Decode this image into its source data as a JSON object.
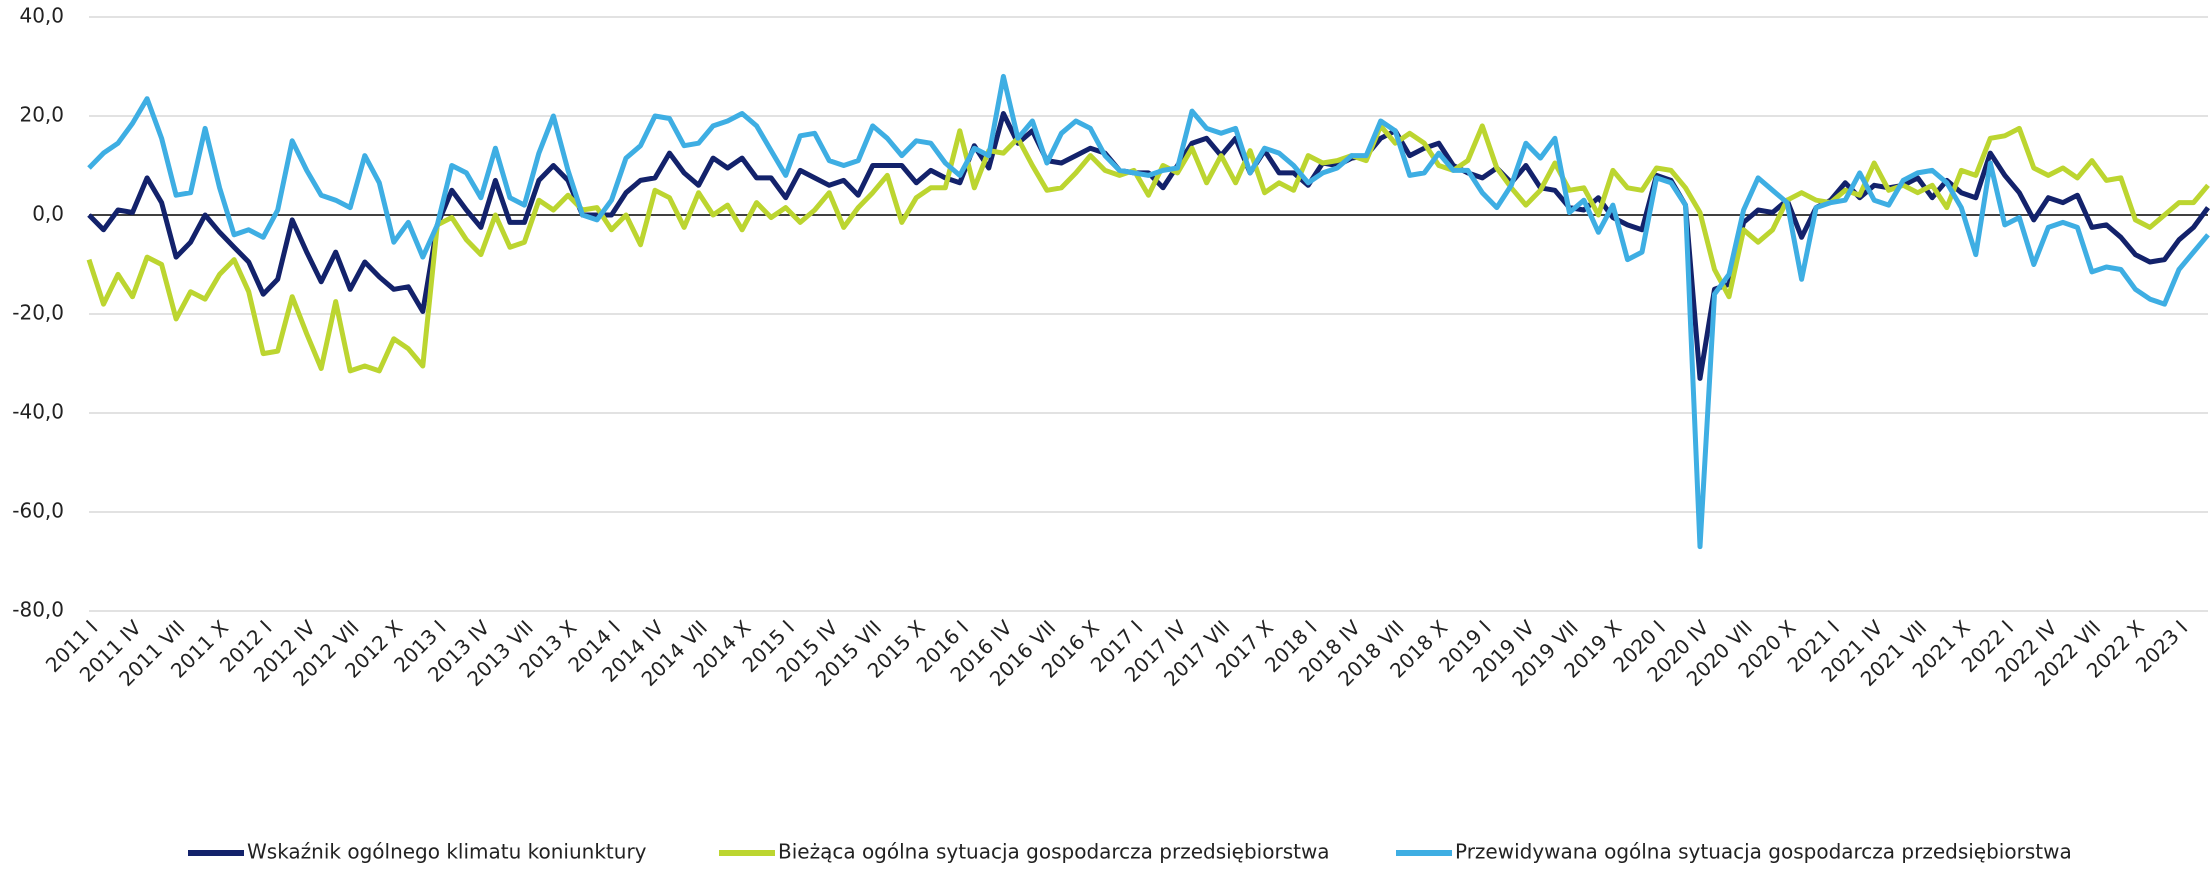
{
  "chart_data": {
    "type": "line",
    "categories": [
      "2011 I",
      null,
      null,
      "2011 IV",
      null,
      null,
      "2011 VII",
      null,
      null,
      "2011 X",
      null,
      null,
      "2012 I",
      null,
      null,
      "2012 IV",
      null,
      null,
      "2012 VII",
      null,
      null,
      "2012 X",
      null,
      null,
      "2013 I",
      null,
      null,
      "2013 IV",
      null,
      null,
      "2013 VII",
      null,
      null,
      "2013 X",
      null,
      null,
      "2014 I",
      null,
      null,
      "2014 IV",
      null,
      null,
      "2014 VII",
      null,
      null,
      "2014 X",
      null,
      null,
      "2015 I",
      null,
      null,
      "2015 IV",
      null,
      null,
      "2015 VII",
      null,
      null,
      "2015 X",
      null,
      null,
      "2016 I",
      null,
      null,
      "2016 IV",
      null,
      null,
      "2016 VII",
      null,
      null,
      "2016 X",
      null,
      null,
      "2017 I",
      null,
      null,
      "2017 IV",
      null,
      null,
      "2017 VII",
      null,
      null,
      "2017 X",
      null,
      null,
      "2018 I",
      null,
      null,
      "2018 IV",
      null,
      null,
      "2018 VII",
      null,
      null,
      "2018 X",
      null,
      null,
      "2019 I",
      null,
      null,
      "2019 IV",
      null,
      null,
      "2019 VII",
      null,
      null,
      "2019 X",
      null,
      null,
      "2020 I",
      null,
      null,
      "2020 IV",
      null,
      null,
      "2020 VII",
      null,
      null,
      "2020 X",
      null,
      null,
      "2021 I",
      null,
      null,
      "2021 IV",
      null,
      null,
      "2021 VII",
      null,
      null,
      "2021 X",
      null,
      null,
      "2022 I",
      null,
      null,
      "2022 IV",
      null,
      null,
      "2022 VII",
      null,
      null,
      "2022 X",
      null,
      null,
      "2023 I",
      null,
      null
    ],
    "series": [
      {
        "name": "Wskaźnik ogólnego klimatu koniunktury",
        "color": "#13226b",
        "values": [
          0,
          -3,
          1,
          0.5,
          7.5,
          2.5,
          -8.5,
          -5.5,
          0,
          -3.5,
          -6.5,
          -9.5,
          -16,
          -13,
          -1,
          -7.5,
          -13.5,
          -7.5,
          -15,
          -9.5,
          -12.5,
          -15,
          -14.5,
          -19.5,
          -2,
          5,
          1,
          -2.5,
          7,
          -1.5,
          -1.5,
          7,
          10,
          7,
          0,
          0,
          0,
          4.5,
          7,
          7.5,
          12.5,
          8.5,
          6,
          11.5,
          9.5,
          11.5,
          7.5,
          7.5,
          3.5,
          9,
          7.5,
          6,
          7,
          4,
          10,
          10,
          10,
          6.5,
          9,
          7.5,
          6.5,
          14,
          9.5,
          20.5,
          14.5,
          17,
          11,
          10.5,
          12,
          13.5,
          12.5,
          9,
          8.5,
          8.5,
          5.5,
          10,
          14.5,
          15.5,
          12,
          15.5,
          8.5,
          13,
          8.5,
          8.5,
          6,
          10.5,
          10,
          11.5,
          12,
          15.5,
          17,
          12,
          13.5,
          14.5,
          10,
          8.5,
          7.5,
          9.5,
          6.5,
          10,
          5.5,
          5,
          1.5,
          1,
          3.5,
          -0.5,
          -2,
          -3,
          8,
          7,
          2,
          -33,
          -15,
          -14,
          -1.5,
          1,
          0.5,
          3,
          -4.5,
          1.5,
          3,
          6.5,
          3.5,
          6,
          5.5,
          6,
          7.5,
          3.5,
          7,
          4.5,
          3.5,
          12.5,
          8,
          4.5,
          -1,
          3.5,
          2.5,
          4,
          -2.5,
          -2,
          -4.5,
          -8,
          -9.5,
          -9,
          -5,
          -2.5,
          1.5
        ]
      },
      {
        "name": "Bieżąca ogólna sytuacja gospodarcza przedsiębiorstwa",
        "color": "#bcd530",
        "values": [
          -9,
          -18,
          -12,
          -16.5,
          -8.5,
          -10,
          -21,
          -15.5,
          -17,
          -12,
          -9,
          -15.5,
          -28,
          -27.5,
          -16.5,
          -24,
          -31,
          -17.5,
          -31.5,
          -30.5,
          -31.5,
          -25,
          -27,
          -30.5,
          -2,
          -0.5,
          -5,
          -8,
          0,
          -6.5,
          -5.5,
          3,
          1,
          4,
          1,
          1.5,
          -3,
          0,
          -6,
          5,
          3.5,
          -2.5,
          4.5,
          0,
          2,
          -3,
          2.5,
          -0.5,
          1.5,
          -1.5,
          1,
          4.5,
          -2.5,
          1.5,
          4.5,
          8,
          -1.5,
          3.5,
          5.5,
          5.5,
          17,
          5.5,
          13,
          12.5,
          15.5,
          10,
          5,
          5.5,
          8.5,
          12,
          9,
          8,
          9,
          4,
          10,
          8.5,
          13.5,
          6.5,
          12,
          6.5,
          13,
          4.5,
          6.5,
          5,
          12,
          10.5,
          11,
          12,
          11,
          18,
          14.5,
          16.5,
          14.5,
          10,
          9,
          11,
          18,
          9.5,
          5.5,
          2,
          5,
          10.5,
          5,
          5.5,
          0,
          9,
          5.5,
          5,
          9.5,
          9,
          5.5,
          0.5,
          -11,
          -16.5,
          -3,
          -5.5,
          -3,
          3,
          4.5,
          3,
          2.5,
          5,
          4,
          10.5,
          5,
          6,
          4.5,
          6,
          1.5,
          9,
          8,
          15.5,
          16,
          17.5,
          9.5,
          8,
          9.5,
          7.5,
          11,
          7,
          7.5,
          -1,
          -2.5,
          0,
          2.5,
          2.5,
          6
        ]
      },
      {
        "name": "Przewidywana ogólna sytuacja gospodarcza przedsiębiorstwa",
        "color": "#3eaee3",
        "values": [
          9.5,
          12.5,
          14.5,
          18.5,
          23.5,
          15.5,
          4,
          4.5,
          17.5,
          5.5,
          -4,
          -3,
          -4.5,
          1,
          15,
          9,
          4,
          3,
          1.5,
          12,
          6.5,
          -5.5,
          -1.5,
          -8.5,
          -2,
          10,
          8.5,
          3.5,
          13.5,
          3.5,
          2,
          12.5,
          20,
          9,
          0,
          -1,
          3,
          11.5,
          14,
          20,
          19.5,
          14,
          14.5,
          18,
          19,
          20.5,
          18,
          13,
          8,
          16,
          16.5,
          11,
          10,
          11,
          18,
          15.5,
          12,
          15,
          14.5,
          10.5,
          8,
          13.5,
          12,
          28,
          15.5,
          19,
          10.5,
          16.5,
          19,
          17.5,
          12,
          9,
          8.5,
          8,
          9,
          9.5,
          21,
          17.5,
          16.5,
          17.5,
          8.5,
          13.5,
          12.5,
          10,
          6.5,
          8.5,
          9.5,
          12,
          12,
          19,
          17,
          8,
          8.5,
          12.5,
          9,
          9,
          4.5,
          1.5,
          6,
          14.5,
          11.5,
          15.5,
          0.5,
          3,
          -3.5,
          2,
          -9,
          -7.5,
          7.5,
          6.5,
          2,
          -67,
          -16,
          -12,
          1,
          7.5,
          5,
          2.5,
          -13,
          1.5,
          2.5,
          3,
          8.5,
          3,
          2,
          7,
          8.5,
          9,
          6.5,
          1.5,
          -8,
          10.5,
          -2,
          -0.5,
          -10,
          -2.5,
          -1.5,
          -2.5,
          -11.5,
          -10.5,
          -11,
          -15,
          -17,
          -18,
          -11,
          -7.5,
          -4
        ]
      }
    ],
    "ylim": [
      -80,
      40
    ],
    "yticks": [
      {
        "value": -80,
        "label": "-80,0"
      },
      {
        "value": -60,
        "label": "-60,0"
      },
      {
        "value": -40,
        "label": "-40,0"
      },
      {
        "value": -20,
        "label": "-20,0"
      },
      {
        "value": 0,
        "label": "0,0"
      },
      {
        "value": 20,
        "label": "20,0"
      },
      {
        "value": 40,
        "label": "40,0"
      }
    ],
    "grid": true,
    "legend": "bottom"
  }
}
